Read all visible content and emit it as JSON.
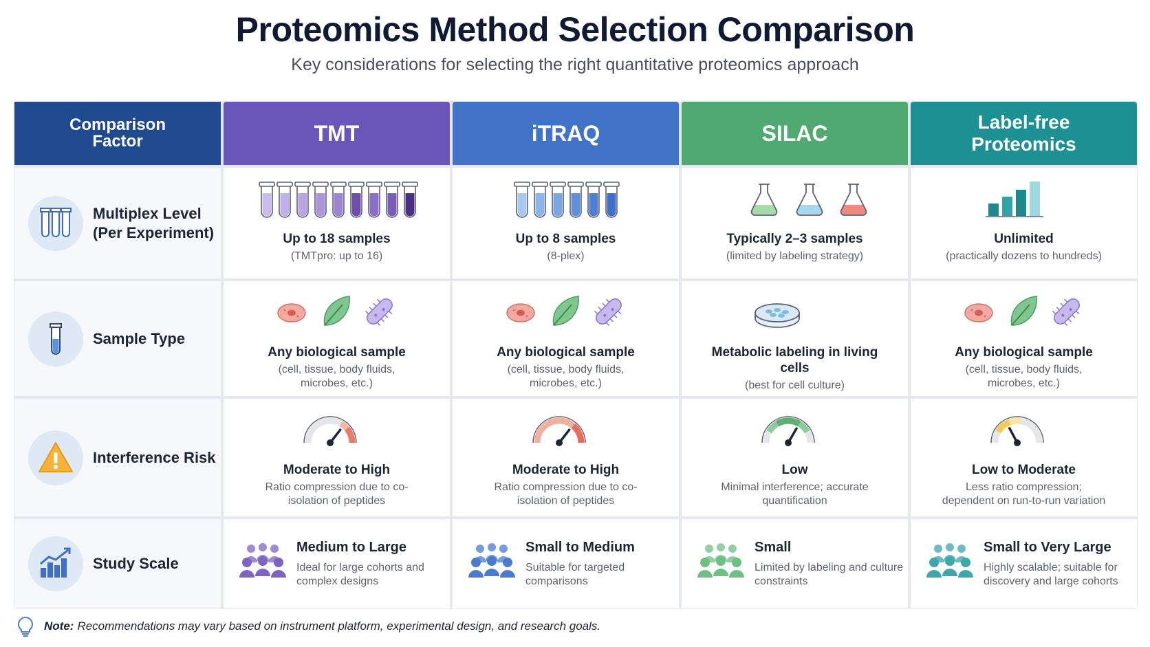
{
  "header": {
    "title": "Proteomics Method Selection Comparison",
    "subtitle": "Key considerations for selecting the right quantitative proteomics approach"
  },
  "table": {
    "columns": [
      "Comparison Factor",
      "TMT",
      "iTRAQ",
      "SILAC",
      "Label-free Proteomics"
    ],
    "rows": [
      {
        "factor": "Multiplex Level (Per Experiment)",
        "cells": [
          {
            "main": "Up to 18 samples",
            "sub": "(TMTpro: up to 16)"
          },
          {
            "main": "Up to 8 samples",
            "sub": "(8-plex)"
          },
          {
            "main": "Typically 2–3 samples",
            "sub": "(limited by labeling strategy)"
          },
          {
            "main": "Unlimited",
            "sub": "(practically dozens to hundreds)"
          }
        ]
      },
      {
        "factor": "Sample Type",
        "cells": [
          {
            "main": "Any biological sample",
            "sub": "(cell, tissue, body fluids, microbes, etc.)"
          },
          {
            "main": "Any biological sample",
            "sub": "(cell, tissue, body fluids, microbes, etc.)"
          },
          {
            "main": "Metabolic labeling in living cells",
            "sub": "(best for cell culture)"
          },
          {
            "main": "Any biological sample",
            "sub": "(cell, tissue, body fluids, microbes, etc.)"
          }
        ]
      },
      {
        "factor": "Interference Risk",
        "cells": [
          {
            "main": "Moderate to High",
            "sub": "Ratio compression due to co-isolation of peptides"
          },
          {
            "main": "Moderate to High",
            "sub": "Ratio compression due to co-isolation of peptides"
          },
          {
            "main": "Low",
            "sub": "Minimal interference; accurate quantification"
          },
          {
            "main": "Low to Moderate",
            "sub": "Less ratio compression; dependent on run-to-run variation"
          }
        ]
      },
      {
        "factor": "Study Scale",
        "cells": [
          {
            "main": "Medium to Large",
            "sub": "Ideal for large cohorts and complex designs"
          },
          {
            "main": "Small to Medium",
            "sub": "Suitable for targeted comparisons"
          },
          {
            "main": "Small",
            "sub": "Limited by labeling and culture constraints"
          },
          {
            "main": "Small to Very Large",
            "sub": "Highly scalable; suitable for discovery and large cohorts"
          }
        ]
      }
    ]
  },
  "note": {
    "label": "Note:",
    "text": "Recommendations may vary based on instrument platform, experimental design, and research goals."
  }
}
